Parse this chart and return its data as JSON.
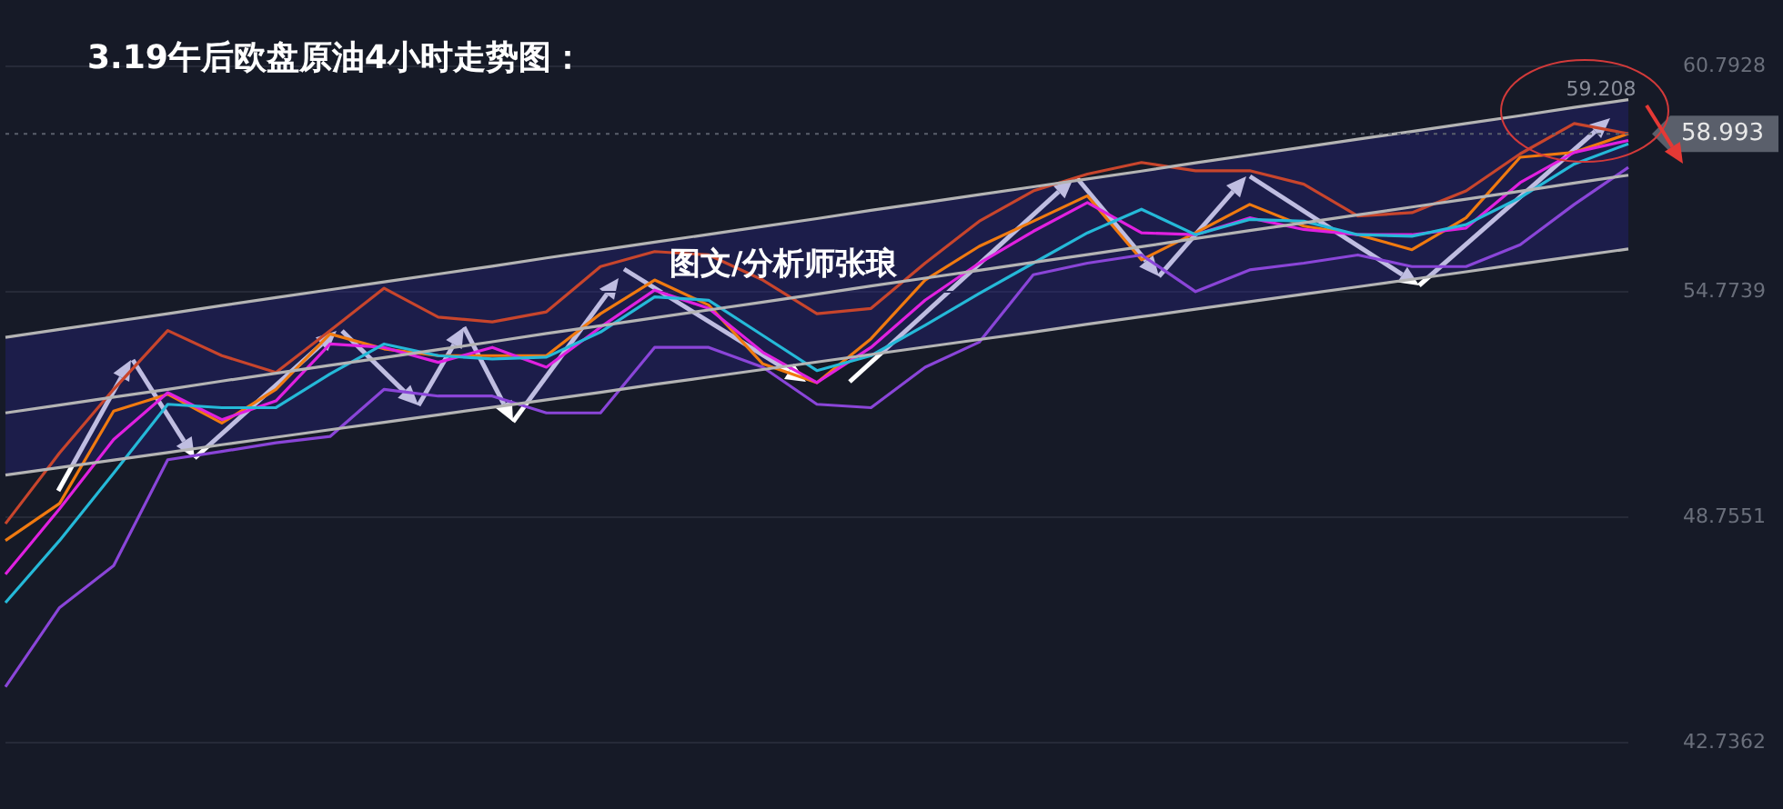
{
  "chart_data": {
    "type": "line",
    "title": "3.19午后欧盘原油4小时走势图：",
    "categories": [
      null,
      null,
      null,
      null,
      null,
      null,
      null,
      null,
      null,
      null,
      null,
      null,
      null,
      null,
      null,
      null,
      null,
      null,
      null,
      null,
      null,
      null,
      null,
      null,
      null,
      null,
      null,
      null,
      null,
      null,
      null
    ],
    "ylim": [
      42.7362,
      60.7928
    ],
    "yticks": [
      42.7362,
      48.7551,
      54.7739,
      60.7928
    ],
    "grid": "y",
    "legend": false,
    "marker": "none",
    "line_style": "solid",
    "series": [
      {
        "color": "#b4b4b4",
        "values": [
          53.56,
          53.77,
          53.98,
          54.19,
          54.41,
          54.62,
          54.83,
          55.04,
          55.25,
          55.46,
          55.68,
          55.89,
          56.1,
          56.31,
          56.52,
          56.73,
          56.95,
          57.16,
          57.37,
          57.58,
          57.79,
          58.0,
          58.22,
          58.43,
          58.64,
          58.85,
          59.06,
          59.27,
          59.48,
          59.7,
          59.91
        ]
      },
      {
        "color": "#b4b4b4",
        "values": [
          49.88,
          50.08,
          50.28,
          50.48,
          50.69,
          50.89,
          51.09,
          51.29,
          51.49,
          51.69,
          51.89,
          52.09,
          52.3,
          52.5,
          52.7,
          52.9,
          53.1,
          53.3,
          53.5,
          53.7,
          53.91,
          54.11,
          54.31,
          54.51,
          54.71,
          54.91,
          55.11,
          55.31,
          55.52,
          55.72,
          55.92
        ]
      },
      {
        "color": "#b4b4b4",
        "values": [
          51.54,
          51.75,
          51.96,
          52.17,
          52.39,
          52.6,
          52.81,
          53.02,
          53.23,
          53.44,
          53.66,
          53.87,
          54.08,
          54.29,
          54.5,
          54.71,
          54.93,
          55.14,
          55.35,
          55.56,
          55.77,
          55.98,
          56.2,
          56.41,
          56.62,
          56.83,
          57.04,
          57.25,
          57.46,
          57.68,
          57.89
        ],
        "upper": [
          53.56,
          53.77,
          53.98,
          54.19,
          54.41,
          54.62,
          54.83,
          55.04,
          55.25,
          55.46,
          55.68,
          55.89,
          56.1,
          56.31,
          56.52,
          56.73,
          56.95,
          57.16,
          57.37,
          57.58,
          57.79,
          58.0,
          58.22,
          58.43,
          58.64,
          58.85,
          59.06,
          59.27,
          59.48,
          59.7,
          59.91
        ],
        "lower": [
          49.88,
          50.08,
          50.28,
          50.48,
          50.69,
          50.89,
          51.09,
          51.29,
          51.49,
          51.69,
          51.89,
          52.09,
          52.3,
          52.5,
          52.7,
          52.9,
          53.1,
          53.3,
          53.5,
          53.7,
          53.91,
          54.11,
          54.31,
          54.51,
          54.71,
          54.91,
          55.11,
          55.31,
          55.52,
          55.72,
          55.92
        ]
      },
      {
        "color": "#c8452c",
        "values": [
          48.58,
          50.47,
          52.17,
          53.74,
          53.07,
          52.62,
          53.74,
          54.87,
          54.1,
          53.97,
          54.24,
          55.45,
          55.85,
          55.76,
          55.09,
          54.19,
          54.33,
          55.54,
          56.66,
          57.47,
          57.92,
          58.23,
          58.01,
          58.01,
          57.65,
          56.8,
          56.89,
          57.47,
          58.46,
          59.27,
          59.0
        ]
      },
      {
        "color": "#8a45d8",
        "values": [
          44.22,
          46.34,
          47.46,
          50.29,
          50.51,
          50.74,
          50.91,
          52.17,
          51.99,
          51.99,
          51.54,
          51.54,
          53.29,
          53.29,
          52.76,
          51.77,
          51.68,
          52.76,
          53.43,
          55.23,
          55.54,
          55.76,
          54.78,
          55.36,
          55.54,
          55.76,
          55.45,
          55.45,
          56.03,
          57.11,
          58.1
        ]
      },
      {
        "color": "#25b9d8",
        "values": [
          46.47,
          48.13,
          49.93,
          51.77,
          51.68,
          51.68,
          52.58,
          53.38,
          53.07,
          52.98,
          53.03,
          53.7,
          54.64,
          54.55,
          53.61,
          52.67,
          53.07,
          53.88,
          54.73,
          55.54,
          56.35,
          56.98,
          56.3,
          56.71,
          56.66,
          56.3,
          56.26,
          56.57,
          57.29,
          58.19,
          58.73
        ]
      },
      {
        "color": "#e020e0",
        "values": [
          47.23,
          48.98,
          50.83,
          52.08,
          51.36,
          51.86,
          53.38,
          53.29,
          52.89,
          53.29,
          52.76,
          53.83,
          54.82,
          54.33,
          53.16,
          52.35,
          53.29,
          54.55,
          55.54,
          56.39,
          57.16,
          56.35,
          56.3,
          56.75,
          56.44,
          56.3,
          56.3,
          56.48,
          57.69,
          58.5,
          58.82
        ]
      },
      {
        "color": "#f07a10",
        "values": [
          48.13,
          49.12,
          51.59,
          52.04,
          51.27,
          52.17,
          53.65,
          53.25,
          53.07,
          53.07,
          53.07,
          54.19,
          55.09,
          54.42,
          52.85,
          52.35,
          53.52,
          55.09,
          55.99,
          56.66,
          57.34,
          55.63,
          56.35,
          57.11,
          56.53,
          56.3,
          55.9,
          56.75,
          58.37,
          58.5,
          59.0
        ]
      }
    ],
    "ref_lines": [
      {
        "axis": "y",
        "value": 58.993,
        "label": "58.993",
        "color": "#5a5f6b"
      }
    ],
    "annotations": [
      "图文/分析师张琅",
      {
        "text": "59.208",
        "y": 59.208
      }
    ]
  }
}
